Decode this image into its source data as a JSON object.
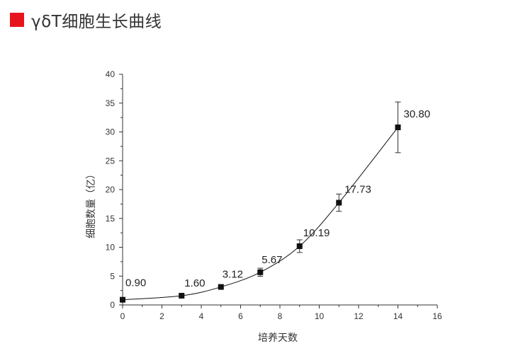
{
  "header": {
    "title": "γδT细胞生长曲线",
    "accent_color": "#e8141d"
  },
  "chart_data": {
    "type": "line",
    "title": "",
    "xlabel": "培养天数",
    "ylabel": "细胞数量（亿）",
    "xlim": [
      0,
      16
    ],
    "ylim": [
      0,
      40
    ],
    "x_ticks": [
      "0",
      "2",
      "4",
      "6",
      "8",
      "10",
      "12",
      "14",
      "16"
    ],
    "y_ticks": [
      "0",
      "5",
      "10",
      "15",
      "20",
      "25",
      "30",
      "35",
      "40"
    ],
    "grid": false,
    "legend": "none",
    "series": [
      {
        "x": [
          0,
          3,
          5,
          7,
          9,
          11,
          14
        ],
        "y": [
          0.9,
          1.6,
          3.12,
          5.67,
          10.19,
          17.73,
          30.8
        ],
        "error": [
          0,
          0.2,
          0.2,
          0.7,
          1.1,
          1.5,
          4.4
        ],
        "labels": [
          "0.90",
          "1.60",
          "3.12",
          "5.67",
          "10.19",
          "17.73",
          "30.80"
        ],
        "marker": "square",
        "color": "#111111"
      }
    ]
  }
}
